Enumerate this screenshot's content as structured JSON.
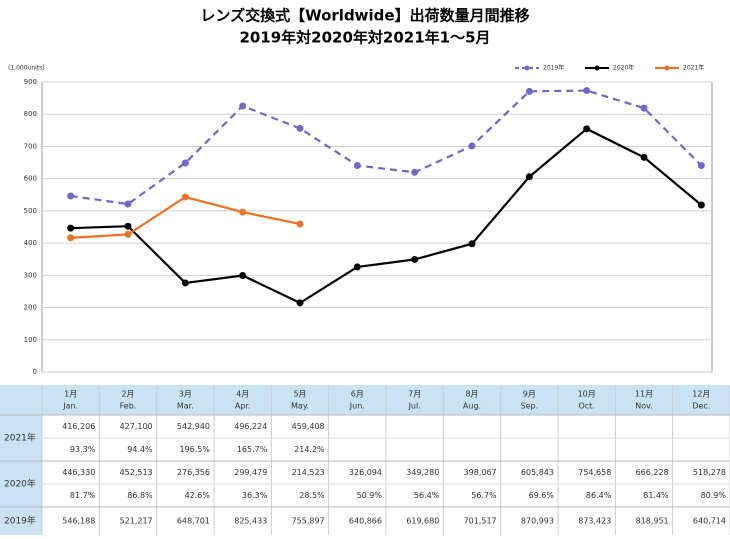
{
  "chart_data": {
    "type": "line",
    "title": "レンズ交換式【Worldwide】出荷数量月間推移",
    "subtitle": "2019年対2020年対2021年1～5月",
    "ylabel": "(1,000units)",
    "categories": [
      "1月",
      "2月",
      "3月",
      "4月",
      "5月",
      "6月",
      "7月",
      "8月",
      "9月",
      "10月",
      "11月",
      "12月"
    ],
    "categories_en": [
      "Jan.",
      "Feb.",
      "Mar.",
      "Apr.",
      "May.",
      "Jun.",
      "Jul.",
      "Aug.",
      "Sep.",
      "Oct.",
      "Nov.",
      "Dec."
    ],
    "ylim": [
      0,
      900
    ],
    "yticks": [
      0,
      100,
      200,
      300,
      400,
      500,
      600,
      700,
      800,
      900
    ],
    "grid": true,
    "legend": "top-right",
    "series": [
      {
        "name": "2019年",
        "color": "#6e68c8",
        "dashed": true,
        "values": [
          546.188,
          521.217,
          648.701,
          825.433,
          755.897,
          640.866,
          619.68,
          701.517,
          870.993,
          873.423,
          818.951,
          640.714
        ],
        "value_labels": [
          "546,188",
          "521,217",
          "648,701",
          "825,433",
          "755,897",
          "640,866",
          "619,680",
          "701,517",
          "870,993",
          "873,423",
          "818,951",
          "640,714"
        ]
      },
      {
        "name": "2020年",
        "color": "#000000",
        "dashed": false,
        "values": [
          446.33,
          452.513,
          276.356,
          299.479,
          214.523,
          326.094,
          349.28,
          398.067,
          605.843,
          754.658,
          666.228,
          518.278
        ],
        "value_labels": [
          "446,330",
          "452,513",
          "276,356",
          "299,479",
          "214,523",
          "326,094",
          "349,280",
          "398,067",
          "605,843",
          "754,658",
          "666,228",
          "518,278"
        ],
        "ratios": [
          "81.7%",
          "86.8%",
          "42.6%",
          "36.3%",
          "28.5%",
          "50.9%",
          "56.4%",
          "56.7%",
          "69.6%",
          "86.4%",
          "81.4%",
          "80.9%"
        ]
      },
      {
        "name": "2021年",
        "color": "#f07020",
        "dashed": false,
        "values": [
          416.206,
          427.1,
          542.94,
          496.224,
          459.408,
          null,
          null,
          null,
          null,
          null,
          null,
          null
        ],
        "value_labels": [
          "416,206",
          "427,100",
          "542,940",
          "496,224",
          "459,408",
          null,
          null,
          null,
          null,
          null,
          null,
          null
        ],
        "ratios": [
          "93.3%",
          "94.4%",
          "196.5%",
          "165.7%",
          "214.2%",
          null,
          null,
          null,
          null,
          null,
          null,
          null
        ]
      }
    ]
  }
}
